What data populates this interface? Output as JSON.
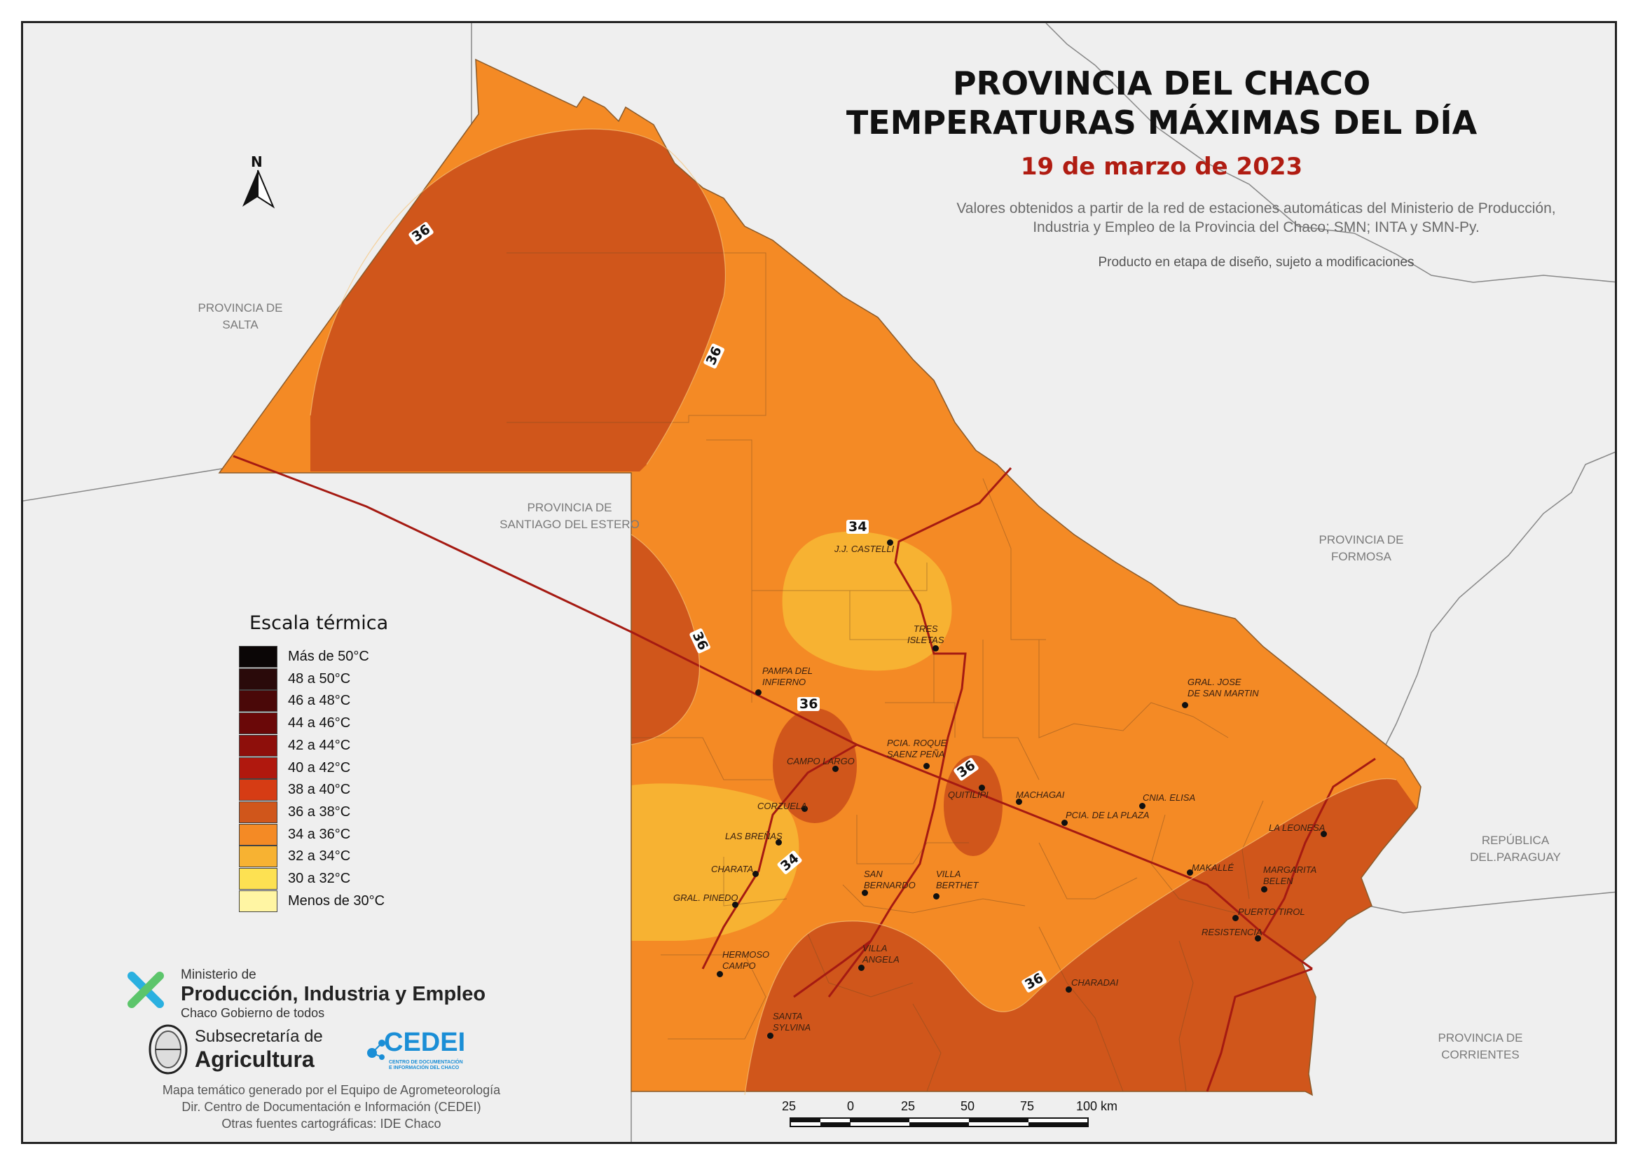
{
  "title": {
    "line1": "PROVINCIA DEL CHACO",
    "line2": "TEMPERATURAS MÁXIMAS DEL DÍA",
    "date": "19 de marzo de 2023"
  },
  "source_text": "Valores obtenidos a partir de la red de estaciones automáticas del Ministerio de Producción, Industria y Empleo de la Provincia del Chaco; SMN; INTA y SMN-Py.",
  "draft_note": "Producto en etapa de diseño, sujeto a modificaciones",
  "north_arrow": {
    "label": "N",
    "icon": "north-arrow-icon"
  },
  "regions": {
    "salta": [
      "PROVINCIA DE",
      "SALTA"
    ],
    "santiago": [
      "PROVINCIA DE",
      "SANTIAGO DEL ESTERO"
    ],
    "formosa": [
      "PROVINCIA DE",
      "FORMOSA"
    ],
    "paraguay": [
      "REPÚBLICA",
      "DEL.PARAGUAY"
    ],
    "corrientes": [
      "PROVINCIA DE",
      "CORRIENTES"
    ]
  },
  "towns": [
    {
      "id": "castelli",
      "lines": [
        "J.J. CASTELLI"
      ]
    },
    {
      "id": "tres-isletas",
      "lines": [
        "TRES",
        "ISLETAS"
      ]
    },
    {
      "id": "pampa",
      "lines": [
        "PAMPA DEL",
        "INFIERNO"
      ]
    },
    {
      "id": "gral-san-martin",
      "lines": [
        "GRAL. JOSE",
        "DE SAN MARTIN"
      ]
    },
    {
      "id": "saenz-pena",
      "lines": [
        "PCIA. ROQUE",
        "SAENZ PEÑA"
      ]
    },
    {
      "id": "campo-largo",
      "lines": [
        "CAMPO LARGO"
      ]
    },
    {
      "id": "quitilipi",
      "lines": [
        "QUITILIPI"
      ]
    },
    {
      "id": "machagai",
      "lines": [
        "MACHAGAI"
      ]
    },
    {
      "id": "cnia-elisa",
      "lines": [
        "CNIA. ELISA"
      ]
    },
    {
      "id": "corzuela",
      "lines": [
        "CORZUELA"
      ]
    },
    {
      "id": "pcia-plaza",
      "lines": [
        "PCIA. DE LA PLAZA"
      ]
    },
    {
      "id": "la-leonesa",
      "lines": [
        "LA LEONESA"
      ]
    },
    {
      "id": "las-brenas",
      "lines": [
        "LAS BREÑAS"
      ]
    },
    {
      "id": "makalle",
      "lines": [
        "MAKALLÉ"
      ]
    },
    {
      "id": "margarita",
      "lines": [
        "MARGARITA",
        "BELEN"
      ]
    },
    {
      "id": "charata",
      "lines": [
        "CHARATA"
      ]
    },
    {
      "id": "san-bernardo",
      "lines": [
        "SAN",
        "BERNARDO"
      ]
    },
    {
      "id": "villa-berthet",
      "lines": [
        "VILLA",
        "BERTHET"
      ]
    },
    {
      "id": "gral-pinedo",
      "lines": [
        "GRAL. PINEDO"
      ]
    },
    {
      "id": "puerto-tirol",
      "lines": [
        "PUERTO TIROL"
      ]
    },
    {
      "id": "resistencia",
      "lines": [
        "RESISTENCIA"
      ]
    },
    {
      "id": "hermoso-campo",
      "lines": [
        "HERMOSO",
        "CAMPO"
      ]
    },
    {
      "id": "villa-angela",
      "lines": [
        "VILLA",
        "ANGELA"
      ]
    },
    {
      "id": "charadai",
      "lines": [
        "CHARADAI"
      ]
    },
    {
      "id": "santa-sylvina",
      "lines": [
        "SANTA",
        "SYLVINA"
      ]
    }
  ],
  "isotherm_labels": [
    "36",
    "36",
    "34",
    "36",
    "36",
    "36",
    "34",
    "36"
  ],
  "legend": {
    "title": "Escala térmica",
    "items": [
      {
        "label": "Más de 50°C",
        "color": "#0b0606"
      },
      {
        "label": "48 a 50°C",
        "color": "#2a0a0a"
      },
      {
        "label": "46 a 48°C",
        "color": "#4a0808"
      },
      {
        "label": "44 a 46°C",
        "color": "#6a0808"
      },
      {
        "label": "42 a 44°C",
        "color": "#8e0f0b"
      },
      {
        "label": "40 a 42°C",
        "color": "#b0180e"
      },
      {
        "label": "38 a 40°C",
        "color": "#d63c14"
      },
      {
        "label": "36 a 38°C",
        "color": "#d0561b"
      },
      {
        "label": "34 a 36°C",
        "color": "#f48a25"
      },
      {
        "label": "32 a 34°C",
        "color": "#f7b232"
      },
      {
        "label": "30 a 32°C",
        "color": "#fde152"
      },
      {
        "label": "Menos de 30°C",
        "color": "#fff5a3"
      }
    ]
  },
  "scale_bar": {
    "labels": [
      "25",
      "0",
      "25",
      "50",
      "75",
      "100 km"
    ]
  },
  "ministry": {
    "small": "Ministerio de",
    "big": "Producción, Industria y Empleo",
    "sub": "Chaco Gobierno de todos"
  },
  "subsecretaria": {
    "line1": "Subsecretaría de",
    "line2": "Agricultura"
  },
  "cedei": {
    "name": "CEDEI",
    "sub1": "CENTRO DE DOCUMENTACIÓN",
    "sub2": "E INFORMACIÓN DEL CHACO"
  },
  "credits": [
    "Mapa temático generado por el Equipo de Agrometeorología",
    "Dir. Centro de Documentación e Información (CEDEI)",
    "Otras fuentes cartográficas: IDE Chaco"
  ]
}
